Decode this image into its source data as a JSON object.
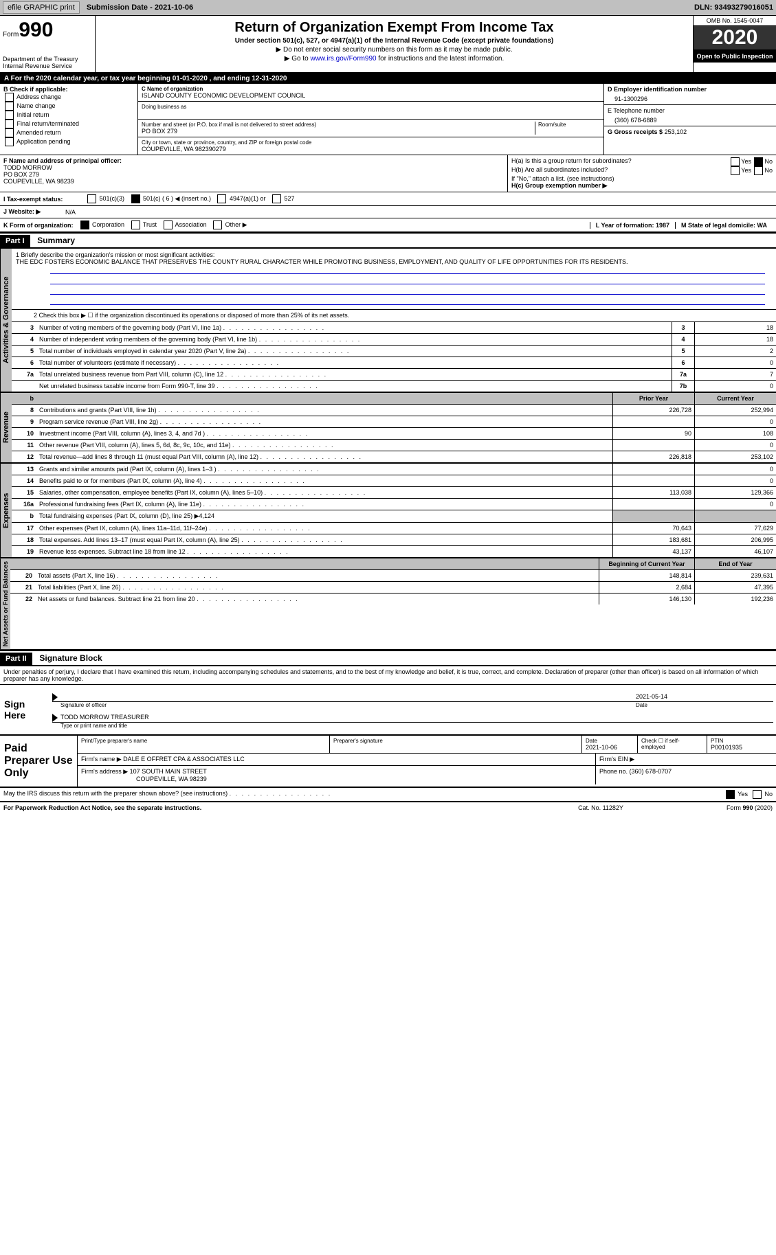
{
  "topbar": {
    "efile": "efile GRAPHIC print",
    "submission_label": "Submission Date - 2021-10-06",
    "dln_label": "DLN: 93493279016051"
  },
  "header": {
    "form_prefix": "Form",
    "form_number": "990",
    "department": "Department of the Treasury\nInternal Revenue Service",
    "title": "Return of Organization Exempt From Income Tax",
    "subtitle": "Under section 501(c), 527, or 4947(a)(1) of the Internal Revenue Code (except private foundations)",
    "note1": "▶ Do not enter social security numbers on this form as it may be made public.",
    "note2_pre": "▶ Go to ",
    "note2_link": "www.irs.gov/Form990",
    "note2_post": " for instructions and the latest information.",
    "omb": "OMB No. 1545-0047",
    "year": "2020",
    "open": "Open to Public Inspection"
  },
  "taxyear_line": "A For the 2020 calendar year, or tax year beginning 01-01-2020  , and ending 12-31-2020",
  "b_label": "B Check if applicable:",
  "b_opts": [
    "Address change",
    "Name change",
    "Initial return",
    "Final return/terminated",
    "Amended return",
    "Application pending"
  ],
  "c": {
    "label": "C Name of organization",
    "value": "ISLAND COUNTY ECONOMIC DEVELOPMENT COUNCIL",
    "dba_label": "Doing business as",
    "street_label": "Number and street (or P.O. box if mail is not delivered to street address)",
    "street": "PO BOX 279",
    "room_label": "Room/suite",
    "city_label": "City or town, state or province, country, and ZIP or foreign postal code",
    "city": "COUPEVILLE, WA  982390279"
  },
  "d": {
    "label": "D Employer identification number",
    "value": "91-1300296"
  },
  "e": {
    "label": "E Telephone number",
    "value": "(360) 678-6889"
  },
  "g": {
    "label": "G Gross receipts $",
    "value": "253,102"
  },
  "f": {
    "label": "F  Name and address of principal officer:",
    "name": "TODD MORROW",
    "street": "PO BOX 279",
    "city": "COUPEVILLE, WA  98239"
  },
  "h": {
    "a_label": "H(a)  Is this a group return for subordinates?",
    "yes": "Yes",
    "no": "No",
    "b_label": "H(b)  Are all subordinates included?",
    "b_note": "If \"No,\" attach a list. (see instructions)",
    "c_label": "H(c)  Group exemption number ▶"
  },
  "i": {
    "label": "I  Tax-exempt status:",
    "opts": [
      "501(c)(3)",
      "501(c) ( 6 ) ◀ (insert no.)",
      "4947(a)(1) or",
      "527"
    ]
  },
  "j": {
    "label": "J  Website: ▶",
    "value": "N/A"
  },
  "k": {
    "label": "K Form of organization:",
    "opts": [
      "Corporation",
      "Trust",
      "Association",
      "Other ▶"
    ]
  },
  "l": {
    "label": "L Year of formation: 1987"
  },
  "m": {
    "label": "M State of legal domicile: WA"
  },
  "part1": {
    "header": "Part I",
    "title": "Summary"
  },
  "summary": {
    "gov_label": "Activities & Governance",
    "rev_label": "Revenue",
    "exp_label": "Expenses",
    "net_label": "Net Assets or Fund Balances",
    "line1_label": "1  Briefly describe the organization's mission or most significant activities:",
    "line1_text": "THE EDC FOSTERS ECONOMIC BALANCE THAT PRESERVES THE COUNTY RURAL CHARACTER WHILE PROMOTING BUSINESS, EMPLOYMENT, AND QUALITY OF LIFE OPPORTUNITIES FOR ITS RESIDENTS.",
    "line2": "2   Check this box ▶ ☐  if the organization discontinued its operations or disposed of more than 25% of its net assets.",
    "rows_gov": [
      {
        "n": "3",
        "desc": "Number of voting members of the governing body (Part VI, line 1a)",
        "box": "3",
        "val": "18"
      },
      {
        "n": "4",
        "desc": "Number of independent voting members of the governing body (Part VI, line 1b)",
        "box": "4",
        "val": "18"
      },
      {
        "n": "5",
        "desc": "Total number of individuals employed in calendar year 2020 (Part V, line 2a)",
        "box": "5",
        "val": "2"
      },
      {
        "n": "6",
        "desc": "Total number of volunteers (estimate if necessary)",
        "box": "6",
        "val": "0"
      },
      {
        "n": "7a",
        "desc": "Total unrelated business revenue from Part VIII, column (C), line 12",
        "box": "7a",
        "val": "7"
      },
      {
        "n": "",
        "desc": "Net unrelated business taxable income from Form 990-T, line 39",
        "box": "7b",
        "val": "0"
      }
    ],
    "prior_head": "Prior Year",
    "current_head": "Current Year",
    "rows_rev": [
      {
        "n": "8",
        "desc": "Contributions and grants (Part VIII, line 1h)",
        "prior": "226,728",
        "curr": "252,994"
      },
      {
        "n": "9",
        "desc": "Program service revenue (Part VIII, line 2g)",
        "prior": "",
        "curr": "0"
      },
      {
        "n": "10",
        "desc": "Investment income (Part VIII, column (A), lines 3, 4, and 7d )",
        "prior": "90",
        "curr": "108"
      },
      {
        "n": "11",
        "desc": "Other revenue (Part VIII, column (A), lines 5, 6d, 8c, 9c, 10c, and 11e)",
        "prior": "",
        "curr": "0"
      },
      {
        "n": "12",
        "desc": "Total revenue—add lines 8 through 11 (must equal Part VIII, column (A), line 12)",
        "prior": "226,818",
        "curr": "253,102"
      }
    ],
    "rows_exp": [
      {
        "n": "13",
        "desc": "Grants and similar amounts paid (Part IX, column (A), lines 1–3 )",
        "prior": "",
        "curr": "0"
      },
      {
        "n": "14",
        "desc": "Benefits paid to or for members (Part IX, column (A), line 4)",
        "prior": "",
        "curr": "0"
      },
      {
        "n": "15",
        "desc": "Salaries, other compensation, employee benefits (Part IX, column (A), lines 5–10)",
        "prior": "113,038",
        "curr": "129,366"
      },
      {
        "n": "16a",
        "desc": "Professional fundraising fees (Part IX, column (A), line 11e)",
        "prior": "",
        "curr": "0"
      },
      {
        "n": "b",
        "desc": "Total fundraising expenses (Part IX, column (D), line 25) ▶4,124",
        "prior": "grey",
        "curr": "grey"
      },
      {
        "n": "17",
        "desc": "Other expenses (Part IX, column (A), lines 11a–11d, 11f–24e)",
        "prior": "70,643",
        "curr": "77,629"
      },
      {
        "n": "18",
        "desc": "Total expenses. Add lines 13–17 (must equal Part IX, column (A), line 25)",
        "prior": "183,681",
        "curr": "206,995"
      },
      {
        "n": "19",
        "desc": "Revenue less expenses. Subtract line 18 from line 12",
        "prior": "43,137",
        "curr": "46,107"
      }
    ],
    "begin_head": "Beginning of Current Year",
    "end_head": "End of Year",
    "rows_net": [
      {
        "n": "20",
        "desc": "Total assets (Part X, line 16)",
        "prior": "148,814",
        "curr": "239,631"
      },
      {
        "n": "21",
        "desc": "Total liabilities (Part X, line 26)",
        "prior": "2,684",
        "curr": "47,395"
      },
      {
        "n": "22",
        "desc": "Net assets or fund balances. Subtract line 21 from line 20",
        "prior": "146,130",
        "curr": "192,236"
      }
    ]
  },
  "part2": {
    "header": "Part II",
    "title": "Signature Block"
  },
  "penalties": "Under penalties of perjury, I declare that I have examined this return, including accompanying schedules and statements, and to the best of my knowledge and belief, it is true, correct, and complete. Declaration of preparer (other than officer) is based on all information of which preparer has any knowledge.",
  "sign": {
    "here": "Sign Here",
    "sig_label": "Signature of officer",
    "date": "2021-05-14",
    "date_label": "Date",
    "name": "TODD MORROW  TREASURER",
    "name_label": "Type or print name and title"
  },
  "prep": {
    "label": "Paid Preparer Use Only",
    "row1": {
      "c1_label": "Print/Type preparer's name",
      "c2_label": "Preparer's signature",
      "c3_label": "Date",
      "c3_val": "2021-10-06",
      "c4_label": "Check ☐  if self-employed",
      "c5_label": "PTIN",
      "c5_val": "P00101935"
    },
    "row2": {
      "firm_label": "Firm's name    ▶",
      "firm_val": "DALE E OFFRET CPA & ASSOCIATES LLC",
      "ein_label": "Firm's EIN ▶"
    },
    "row3": {
      "addr_label": "Firm's address ▶",
      "addr1": "107 SOUTH MAIN STREET",
      "addr2": "COUPEVILLE, WA  98239",
      "phone_label": "Phone no. (360) 678-0707"
    }
  },
  "discuss": {
    "text": "May the IRS discuss this return with the preparer shown above? (see instructions)",
    "yes": "Yes",
    "no": "No"
  },
  "footer": {
    "left": "For Paperwork Reduction Act Notice, see the separate instructions.",
    "center": "Cat. No. 11282Y",
    "right": "Form 990 (2020)"
  }
}
